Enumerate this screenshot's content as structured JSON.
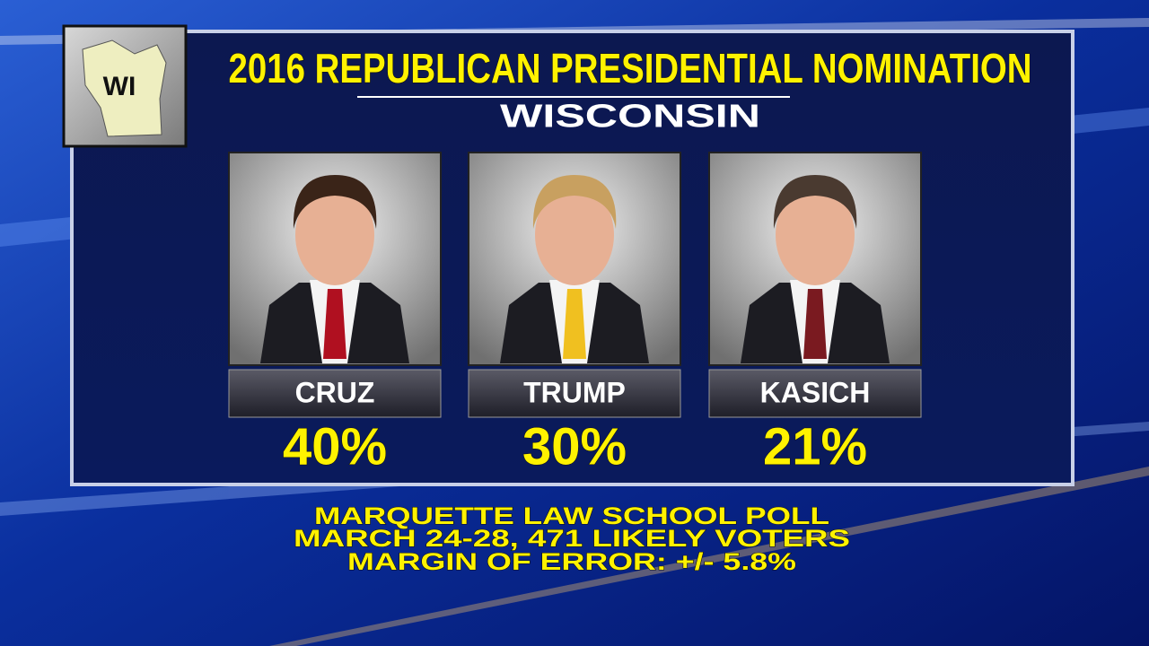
{
  "state_badge": "WI",
  "header": {
    "title": "2016 REPUBLICAN PRESIDENTIAL NOMINATION",
    "subtitle": "WISCONSIN"
  },
  "candidates": [
    {
      "name": "CRUZ",
      "result": "40%"
    },
    {
      "name": "TRUMP",
      "result": "30%"
    },
    {
      "name": "KASICH",
      "result": "21%"
    }
  ],
  "footer": {
    "lines": [
      "MARQUETTE LAW SCHOOL POLL",
      "MARCH 24-28, 471 LIKELY VOTERS",
      "MARGIN OF ERROR: +/- 5.8%"
    ]
  }
}
